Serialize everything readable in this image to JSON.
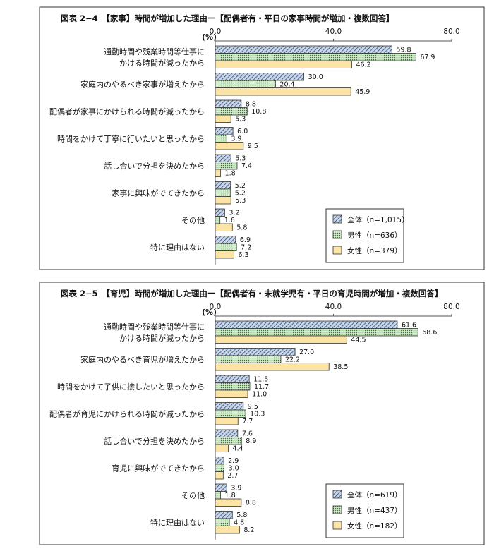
{
  "chart_data": [
    {
      "type": "bar",
      "orientation": "horizontal",
      "title": "図表 2−4　【家事】時間が増加した理由ー【配偶者有・平日の家事時間が増加・複数回答】",
      "unit": "(%)",
      "xlim": [
        0,
        80
      ],
      "ticks": [
        "0.0",
        "40.0",
        "80.0"
      ],
      "categories": [
        [
          "通勤時間や残業時間等仕事に",
          "かける時間が減ったから"
        ],
        [
          "家庭内のやるべき家事が増えたから"
        ],
        [
          "配偶者が家事にかけられる時間が減ったから"
        ],
        [
          "時間をかけて丁寧に行いたいと思ったから"
        ],
        [
          "話し合いで分担を決めたから"
        ],
        [
          "家事に興味がでてきたから"
        ],
        [
          "その他"
        ],
        [
          "特に理由はない"
        ]
      ],
      "series": [
        {
          "name": "全体（n=1,015）",
          "pattern": "hatch",
          "values": [
            59.8,
            30.0,
            8.8,
            6.0,
            5.3,
            5.2,
            3.2,
            6.9
          ]
        },
        {
          "name": "男性（n=636）",
          "pattern": "dots",
          "values": [
            67.9,
            20.4,
            10.8,
            3.9,
            7.4,
            5.2,
            1.6,
            7.2
          ]
        },
        {
          "name": "女性（n=379）",
          "pattern": "solid",
          "values": [
            46.2,
            45.9,
            5.3,
            9.5,
            1.8,
            5.3,
            5.8,
            6.3
          ]
        }
      ],
      "legend_position": "bottom-right"
    },
    {
      "type": "bar",
      "orientation": "horizontal",
      "title": "図表 2−5　【育児】時間が増加した理由ー【配偶者有・未就学児有・平日の育児時間が増加・複数回答】",
      "unit": "(%)",
      "xlim": [
        0,
        80
      ],
      "ticks": [
        "0.0",
        "40.0",
        "80.0"
      ],
      "categories": [
        [
          "通勤時間や残業時間等仕事に",
          "かける時間が減ったから"
        ],
        [
          "家庭内のやるべき育児が増えたから"
        ],
        [
          "時間をかけて子供に接したいと思ったから"
        ],
        [
          "配偶者が育児にかけられる時間が減ったから"
        ],
        [
          "話し合いで分担を決めたから"
        ],
        [
          "育児に興味がでてきたから"
        ],
        [
          "その他"
        ],
        [
          "特に理由はない"
        ]
      ],
      "series": [
        {
          "name": "全体（n=619）",
          "pattern": "hatch",
          "values": [
            61.6,
            27.0,
            11.5,
            9.5,
            7.6,
            2.9,
            3.9,
            5.8
          ]
        },
        {
          "name": "男性（n=437）",
          "pattern": "dots",
          "values": [
            68.6,
            22.2,
            11.7,
            10.3,
            8.9,
            3.0,
            1.8,
            4.8
          ]
        },
        {
          "name": "女性（n=182）",
          "pattern": "solid",
          "values": [
            44.5,
            38.5,
            11.0,
            7.7,
            4.4,
            2.7,
            8.8,
            8.2
          ]
        }
      ],
      "legend_position": "bottom-right"
    }
  ],
  "colors": {
    "hatch_fill": "#c9d6e8",
    "hatch_line": "#1f3864",
    "dots_fill": "#d5ecd0",
    "dots_dot": "#3d7a35",
    "solid_fill": "#fbe4a5",
    "border": "#333333"
  }
}
